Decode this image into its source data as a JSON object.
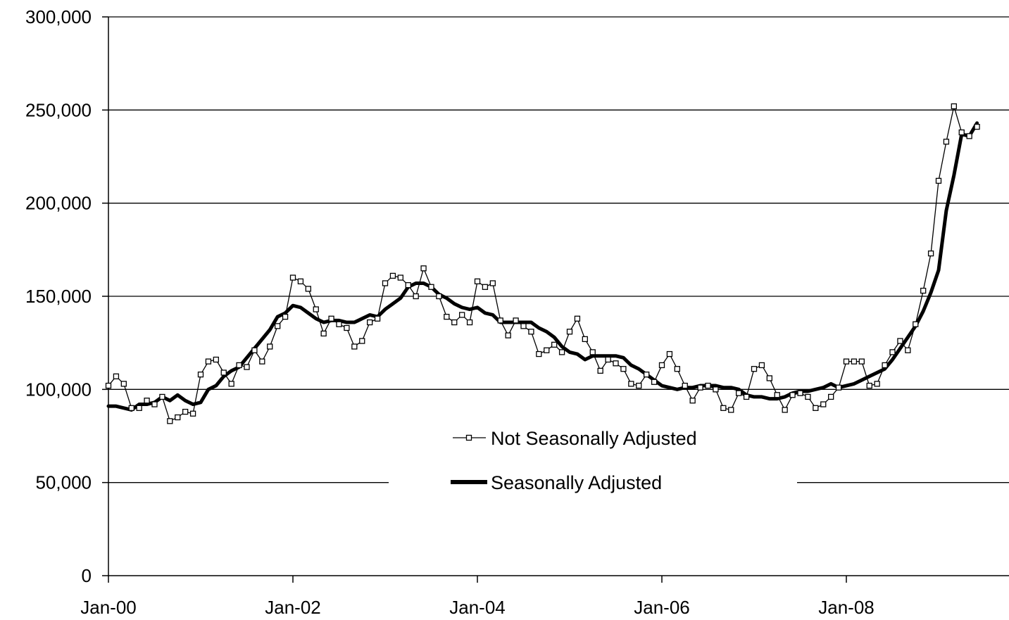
{
  "chart_data": {
    "type": "line",
    "title": "",
    "xlabel": "",
    "ylabel": "",
    "x_start": "Jan-00",
    "x_step": "month",
    "x_ticks": [
      "Jan-00",
      "Jan-02",
      "Jan-04",
      "Jan-06",
      "Jan-08"
    ],
    "y_ticks": [
      "0",
      "50,000",
      "100,000",
      "150,000",
      "200,000",
      "250,000",
      "300,000"
    ],
    "ylim": [
      0,
      300000
    ],
    "grid": "horizontal",
    "legend_position": "center-bottom",
    "series": [
      {
        "name": "Not Seasonally Adjusted",
        "color": "#000000",
        "style": "thin line with open square markers",
        "values": [
          102000,
          107000,
          103000,
          90000,
          90000,
          94000,
          92000,
          96000,
          83000,
          85000,
          88000,
          87000,
          108000,
          115000,
          116000,
          109000,
          103000,
          113000,
          112000,
          121000,
          115000,
          123000,
          134000,
          139000,
          160000,
          158000,
          154000,
          143000,
          130000,
          138000,
          135000,
          133000,
          123000,
          126000,
          136000,
          138000,
          157000,
          161000,
          160000,
          156000,
          150000,
          165000,
          155000,
          150000,
          139000,
          136000,
          140000,
          136000,
          158000,
          155000,
          157000,
          137000,
          129000,
          137000,
          134000,
          131000,
          119000,
          121000,
          124000,
          120000,
          131000,
          138000,
          127000,
          120000,
          110000,
          116000,
          114000,
          111000,
          103000,
          102000,
          108000,
          104000,
          113000,
          119000,
          111000,
          102000,
          94000,
          101000,
          102000,
          100000,
          90000,
          89000,
          98000,
          96000,
          111000,
          113000,
          106000,
          97000,
          89000,
          97000,
          98000,
          96000,
          90000,
          92000,
          96000,
          101000,
          115000,
          115000,
          115000,
          102000,
          103000,
          113000,
          120000,
          126000,
          121000,
          135000,
          153000,
          173000,
          212000,
          233000,
          252000,
          238000,
          236000,
          241000
        ]
      },
      {
        "name": "Seasonally Adjusted",
        "color": "#000000",
        "style": "thick line",
        "values": [
          91000,
          91000,
          90000,
          89000,
          92000,
          92000,
          93000,
          96000,
          94000,
          97000,
          94000,
          92000,
          93000,
          100000,
          102000,
          107000,
          110000,
          112000,
          117000,
          122000,
          127000,
          132000,
          139000,
          141000,
          145000,
          144000,
          141000,
          138000,
          136000,
          137000,
          137000,
          136000,
          136000,
          138000,
          140000,
          139000,
          143000,
          146000,
          149000,
          155000,
          157000,
          157000,
          155000,
          151000,
          149000,
          146000,
          144000,
          143000,
          144000,
          141000,
          140000,
          136000,
          136000,
          136000,
          136000,
          136000,
          133000,
          131000,
          128000,
          123000,
          120000,
          119000,
          116000,
          118000,
          118000,
          118000,
          118000,
          117000,
          113000,
          111000,
          108000,
          105000,
          102000,
          101000,
          100000,
          101000,
          101000,
          102000,
          102000,
          102000,
          101000,
          101000,
          100000,
          97000,
          96000,
          96000,
          95000,
          95000,
          96000,
          98000,
          99000,
          99000,
          100000,
          101000,
          103000,
          101000,
          102000,
          103000,
          105000,
          107000,
          109000,
          111000,
          116000,
          122000,
          128000,
          134000,
          142000,
          152000,
          164000,
          196000,
          215000,
          237000,
          236000,
          243000
        ]
      }
    ]
  }
}
